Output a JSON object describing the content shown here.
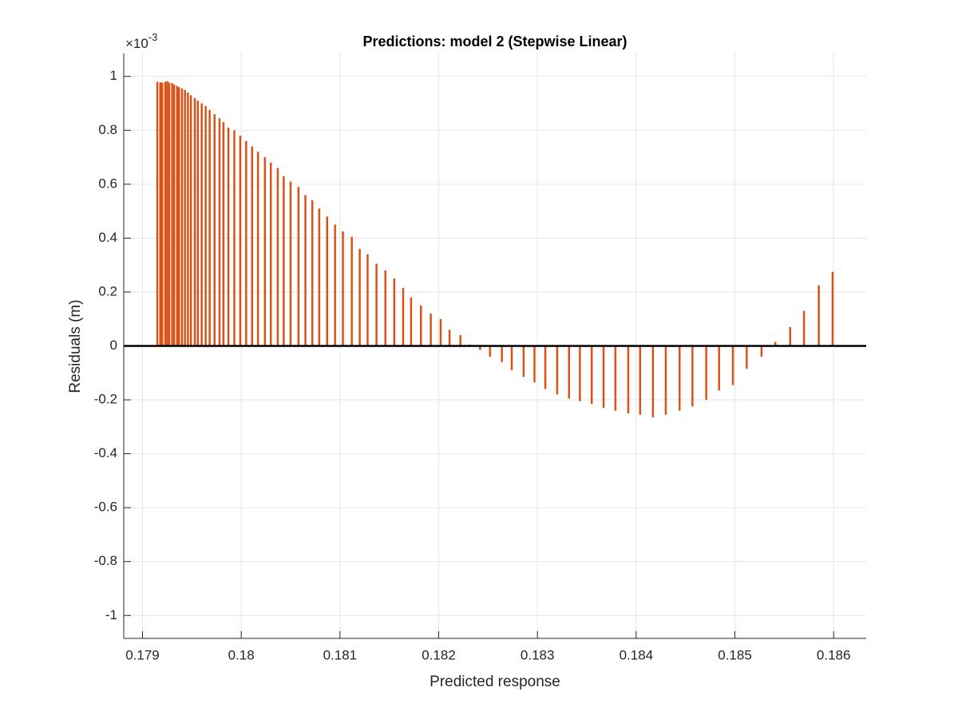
{
  "chart_data": {
    "type": "stem",
    "title": "Predictions: model 2 (Stepwise Linear)",
    "x_label": "Predicted response",
    "y_label": "Residuals (m)",
    "y_multiplier": "×10",
    "y_multiplier_exponent": "-3",
    "color": "#d95319",
    "grid": true,
    "xlim": [
      0.17881,
      0.18633
    ],
    "ylim": [
      -1.085,
      1.085
    ],
    "xticks": [
      0.179,
      0.18,
      0.181,
      0.182,
      0.183,
      0.184,
      0.185,
      0.186
    ],
    "yticks": [
      -1,
      -0.8,
      -0.6,
      -0.4,
      -0.2,
      0,
      0.2,
      0.4,
      0.6,
      0.8,
      1
    ],
    "x": [
      0.17915,
      0.17918,
      0.1792,
      0.17923,
      0.17925,
      0.17927,
      0.1793,
      0.17932,
      0.17935,
      0.17937,
      0.1794,
      0.17943,
      0.17946,
      0.17949,
      0.17953,
      0.17956,
      0.1796,
      0.17964,
      0.17968,
      0.17973,
      0.17978,
      0.17982,
      0.17987,
      0.17993,
      0.17999,
      0.18005,
      0.18011,
      0.18017,
      0.18024,
      0.1803,
      0.18037,
      0.18043,
      0.1805,
      0.18058,
      0.18065,
      0.18072,
      0.18079,
      0.18087,
      0.18095,
      0.18103,
      0.18112,
      0.1812,
      0.18128,
      0.18137,
      0.18146,
      0.18155,
      0.18164,
      0.18172,
      0.18182,
      0.18192,
      0.18202,
      0.18211,
      0.18222,
      0.18231,
      0.18242,
      0.18252,
      0.18264,
      0.18274,
      0.18286,
      0.18297,
      0.18308,
      0.1832,
      0.18332,
      0.18343,
      0.18355,
      0.18367,
      0.18379,
      0.18392,
      0.18404,
      0.18417,
      0.1843,
      0.18444,
      0.18457,
      0.18471,
      0.18484,
      0.18498,
      0.18512,
      0.18527,
      0.18541,
      0.18556,
      0.1857,
      0.18585,
      0.18599
    ],
    "values": [
      0.98,
      0.978,
      0.977,
      0.98,
      0.982,
      0.977,
      0.975,
      0.97,
      0.965,
      0.96,
      0.955,
      0.95,
      0.94,
      0.93,
      0.92,
      0.91,
      0.9,
      0.89,
      0.875,
      0.86,
      0.845,
      0.83,
      0.81,
      0.8,
      0.78,
      0.76,
      0.74,
      0.72,
      0.7,
      0.68,
      0.66,
      0.63,
      0.61,
      0.59,
      0.56,
      0.54,
      0.51,
      0.48,
      0.45,
      0.425,
      0.405,
      0.36,
      0.34,
      0.305,
      0.28,
      0.25,
      0.215,
      0.18,
      0.15,
      0.12,
      0.1,
      0.06,
      0.04,
      0.005,
      -0.015,
      -0.04,
      -0.06,
      -0.09,
      -0.115,
      -0.135,
      -0.16,
      -0.18,
      -0.195,
      -0.205,
      -0.215,
      -0.23,
      -0.24,
      -0.25,
      -0.255,
      -0.265,
      -0.255,
      -0.24,
      -0.225,
      -0.2,
      -0.165,
      -0.145,
      -0.085,
      -0.04,
      0.015,
      0.07,
      0.13,
      0.225,
      0.275
    ]
  }
}
